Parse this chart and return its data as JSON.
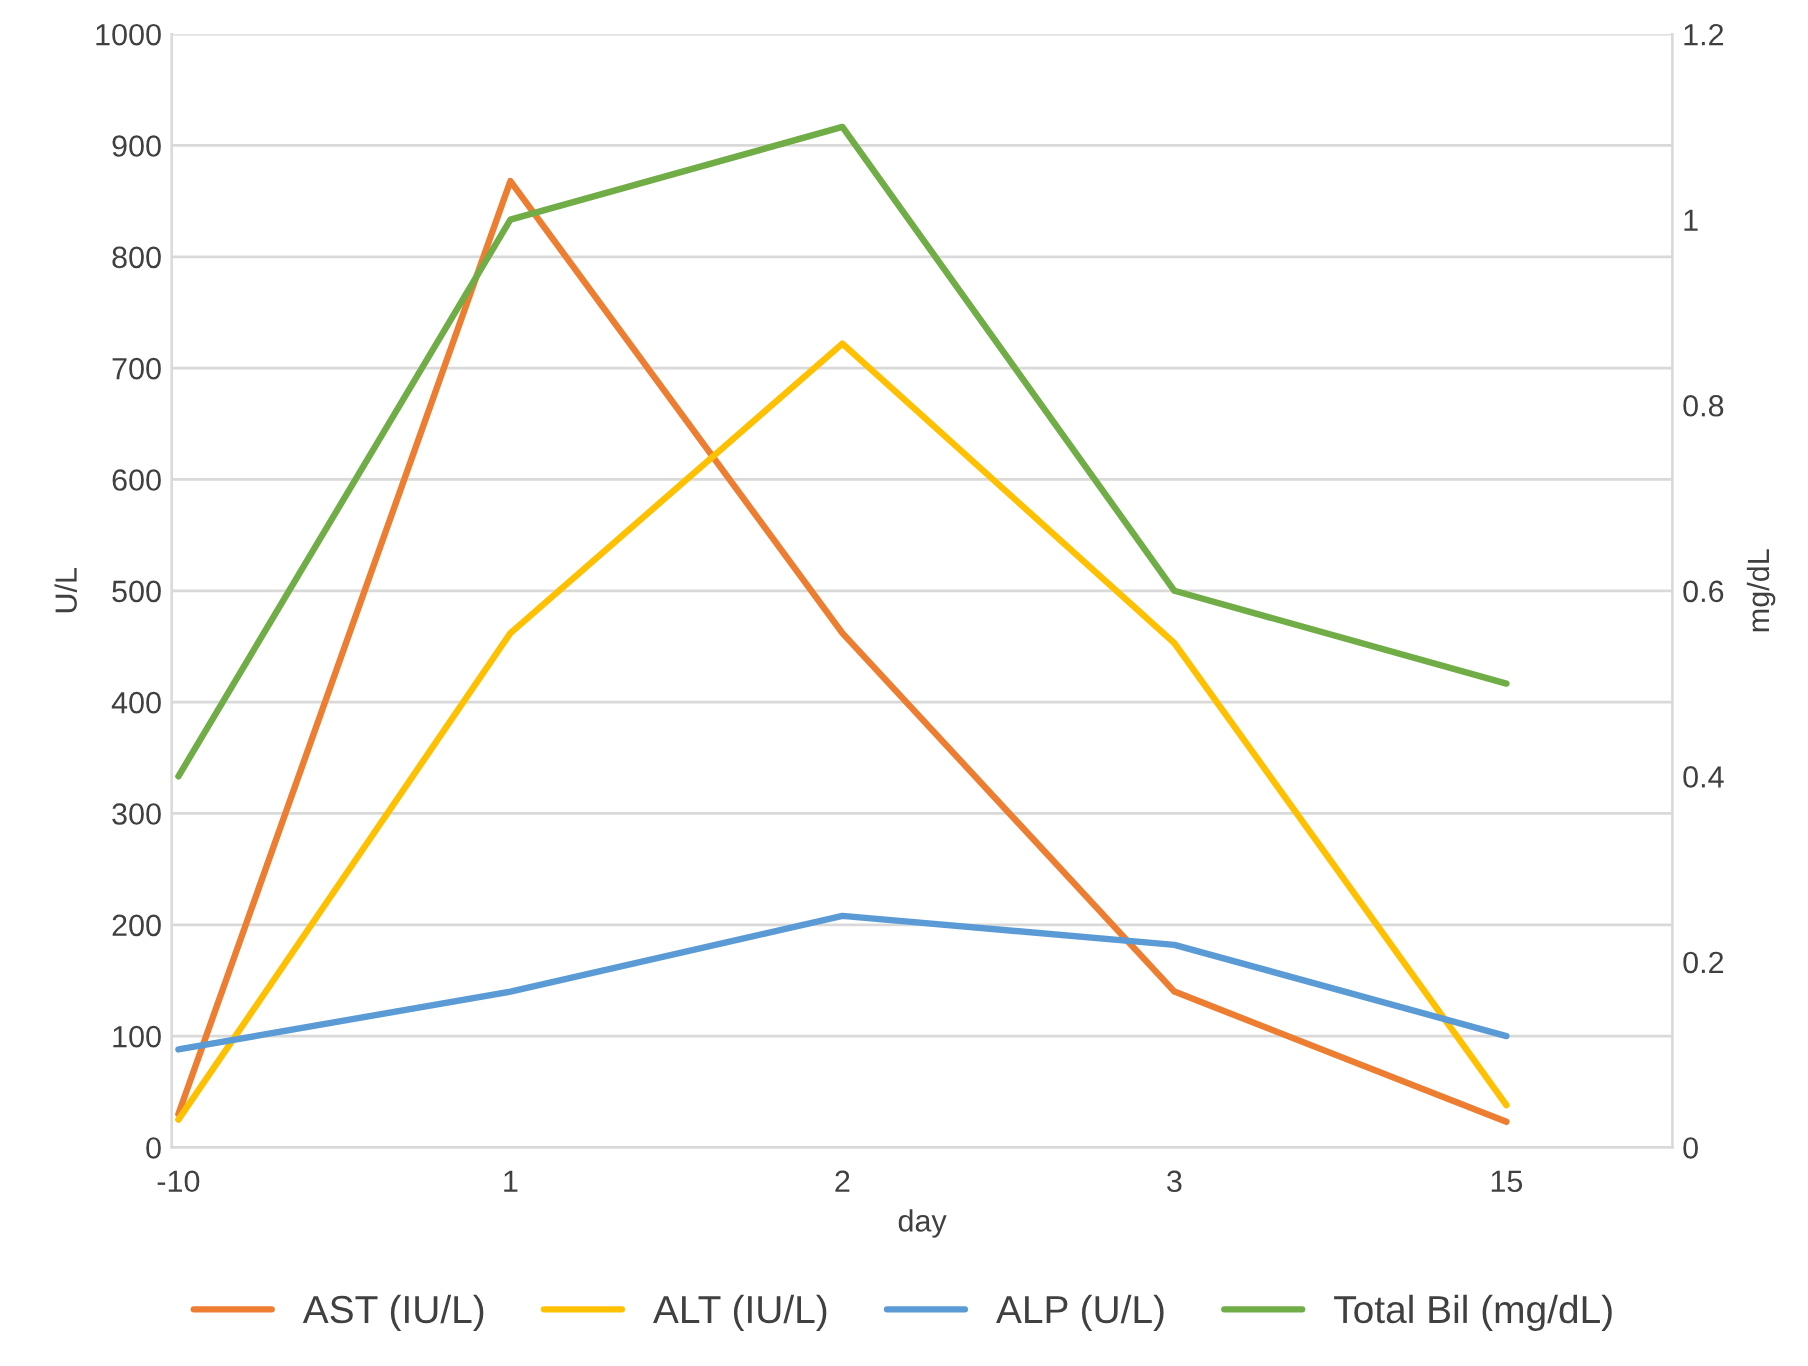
{
  "chart_data": {
    "type": "line",
    "xlabel": "day",
    "ylabel": "U/L",
    "y2label": "mg/dL",
    "categories": [
      "-10",
      "1",
      "2",
      "3",
      "15"
    ],
    "series": [
      {
        "name": "AST (IU/L)",
        "color": "#ed7d31",
        "values": [
          30,
          868,
          462,
          140,
          23
        ]
      },
      {
        "name": "ALT (IU/L)",
        "color": "#ffc000",
        "values": [
          25,
          462,
          722,
          453,
          38
        ]
      },
      {
        "name": "ALP (U/L)",
        "color": "#5b9bd5",
        "values": [
          88,
          140,
          208,
          182,
          100
        ]
      },
      {
        "name": "Total Bil (mg/dL)",
        "color": "#70ad47",
        "axis": "y2",
        "values": [
          0.4,
          1.0,
          1.1,
          0.6,
          0.5
        ]
      }
    ],
    "ylim": [
      0,
      1000
    ],
    "yticks": [
      0,
      100,
      200,
      300,
      400,
      500,
      600,
      700,
      800,
      900,
      1000
    ],
    "y2lim": [
      0,
      1.2
    ],
    "y2ticks": [
      0,
      {
        "value": 0.2,
        "label": "0.2"
      },
      {
        "value": 0.4,
        "label": "0.4"
      },
      {
        "value": 0.6,
        "label": "0.6"
      },
      {
        "value": 0.8,
        "label": "0.8"
      },
      {
        "value": 1,
        "label": "1"
      },
      {
        "value": 1.2,
        "label": "1.2"
      }
    ],
    "grid": "y",
    "legend": "bottom",
    "marker": "none",
    "line_style": "solid"
  }
}
